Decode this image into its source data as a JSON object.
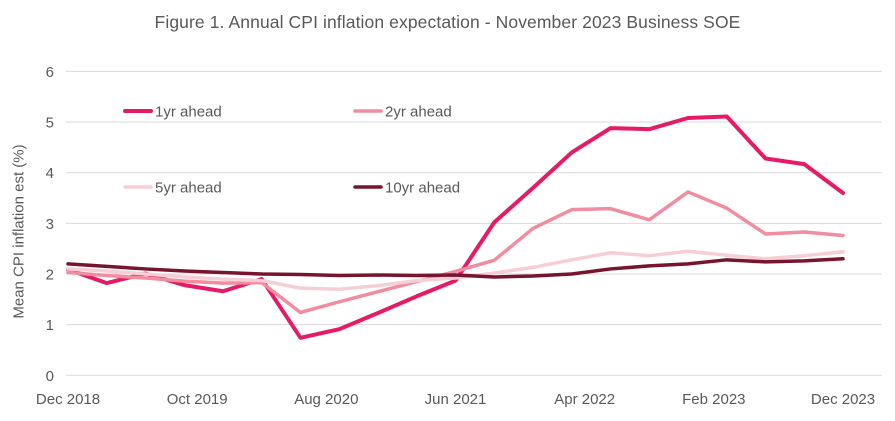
{
  "figure": {
    "title": "Figure 1. Annual CPI inflation expectation - November 2023 Business SOE"
  },
  "chart_data": {
    "type": "line",
    "title": "Figure 1. Annual CPI inflation expectation - November 2023 Business SOE",
    "xlabel": "",
    "ylabel": "Mean CPI inflation est (%)",
    "ylim": [
      0,
      6
    ],
    "yticks": [
      0,
      1,
      2,
      3,
      4,
      5,
      6
    ],
    "grid": "horizontal",
    "legend_position": "inside top-left, two columns",
    "x_ticklabels": [
      "Dec 2018",
      "Oct 2019",
      "Aug 2020",
      "Jun 2021",
      "Apr 2022",
      "Feb 2023",
      "Dec 2023"
    ],
    "x_tick_months": [
      0,
      10,
      20,
      30,
      40,
      50,
      60
    ],
    "categories": [
      "Dec 2018",
      "Mar 2019",
      "Jun 2019",
      "Sep 2019",
      "Dec 2019",
      "Mar 2020",
      "Jun 2020",
      "Sep 2020",
      "Dec 2020",
      "Mar 2021",
      "Jun 2021",
      "Sep 2021",
      "Dec 2021",
      "Mar 2022",
      "Jun 2022",
      "Sep 2022",
      "Dec 2022",
      "Mar 2023",
      "Jun 2023",
      "Sep 2023",
      "Dec 2023"
    ],
    "x_months": [
      0,
      3,
      6,
      9,
      12,
      15,
      18,
      21,
      24,
      27,
      30,
      33,
      36,
      39,
      42,
      45,
      48,
      51,
      54,
      57,
      60
    ],
    "series": [
      {
        "name": "1yr ahead",
        "color": "#e61a66",
        "width": 4,
        "values": [
          2.09,
          1.82,
          2.01,
          1.78,
          1.66,
          1.9,
          0.74,
          0.91,
          1.23,
          1.56,
          1.87,
          3.02,
          3.7,
          4.4,
          4.88,
          4.86,
          5.08,
          5.11,
          4.28,
          4.17,
          3.6
        ]
      },
      {
        "name": "2yr ahead",
        "color": "#f08da0",
        "width": 3.5,
        "values": [
          2.03,
          1.97,
          1.92,
          1.86,
          1.82,
          1.83,
          1.24,
          1.45,
          1.65,
          1.85,
          2.05,
          2.27,
          2.9,
          3.27,
          3.29,
          3.07,
          3.62,
          3.3,
          2.79,
          2.83,
          2.76
        ]
      },
      {
        "name": "5yr ahead",
        "color": "#f6ced6",
        "width": 3.5,
        "values": [
          2.1,
          2.06,
          2.0,
          1.94,
          1.9,
          1.87,
          1.72,
          1.7,
          1.77,
          1.87,
          1.92,
          2.02,
          2.13,
          2.28,
          2.42,
          2.36,
          2.45,
          2.37,
          2.3,
          2.36,
          2.44
        ]
      },
      {
        "name": "10yr ahead",
        "color": "#77152f",
        "width": 3.5,
        "values": [
          2.2,
          2.15,
          2.1,
          2.06,
          2.03,
          2.0,
          1.99,
          1.97,
          1.98,
          1.97,
          1.98,
          1.94,
          1.96,
          2.0,
          2.1,
          2.16,
          2.2,
          2.28,
          2.24,
          2.26,
          2.3
        ]
      }
    ]
  },
  "colors": {
    "text": "#595959",
    "gridline": "#d9d9d9",
    "background": "#ffffff"
  },
  "layout_values": {
    "tick_font_px": 15,
    "legend_font_px": 15
  }
}
